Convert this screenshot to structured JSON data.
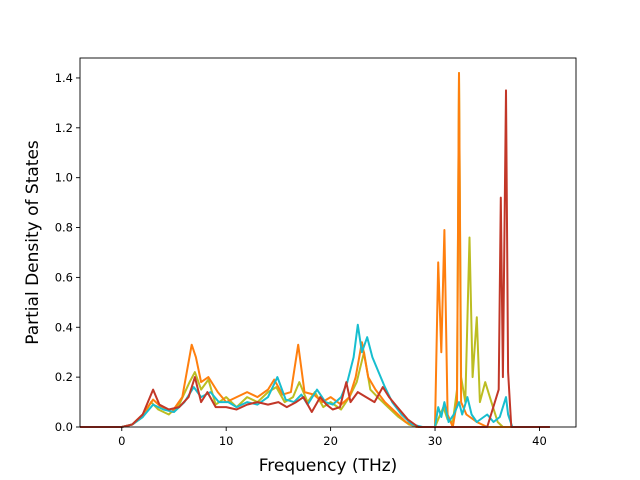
{
  "chart_data": {
    "type": "line",
    "xlabel": "Frequency (THz)",
    "ylabel": "Partial Density of States",
    "xlim": [
      -4.0,
      43.5
    ],
    "ylim": [
      0.0,
      1.48
    ],
    "xticks": [
      0,
      10,
      20,
      30,
      40
    ],
    "xtick_labels": [
      "0",
      "10",
      "20",
      "30",
      "40"
    ],
    "yticks": [
      0.0,
      0.2,
      0.4,
      0.6,
      0.8,
      1.0,
      1.2,
      1.4
    ],
    "ytick_labels": [
      "0.0",
      "0.2",
      "0.4",
      "0.6",
      "0.8",
      "1.0",
      "1.2",
      "1.4"
    ],
    "grid": false,
    "series": [
      {
        "color": "#bcbd22",
        "points": [
          [
            -4,
            0
          ],
          [
            0,
            0
          ],
          [
            1,
            0.01
          ],
          [
            2,
            0.04
          ],
          [
            2.8,
            0.1
          ],
          [
            3.5,
            0.07
          ],
          [
            4.5,
            0.05
          ],
          [
            5.5,
            0.09
          ],
          [
            6.5,
            0.18
          ],
          [
            7,
            0.22
          ],
          [
            7.6,
            0.15
          ],
          [
            8.3,
            0.19
          ],
          [
            9,
            0.09
          ],
          [
            10,
            0.12
          ],
          [
            11,
            0.08
          ],
          [
            12,
            0.12
          ],
          [
            13,
            0.1
          ],
          [
            14,
            0.14
          ],
          [
            14.8,
            0.16
          ],
          [
            15.6,
            0.1
          ],
          [
            16.4,
            0.12
          ],
          [
            17,
            0.18
          ],
          [
            17.8,
            0.1
          ],
          [
            18.5,
            0.14
          ],
          [
            19.3,
            0.08
          ],
          [
            20,
            0.1
          ],
          [
            21,
            0.07
          ],
          [
            21.8,
            0.12
          ],
          [
            22.5,
            0.18
          ],
          [
            23.2,
            0.3
          ],
          [
            23.8,
            0.15
          ],
          [
            24.5,
            0.12
          ],
          [
            25.5,
            0.08
          ],
          [
            26.5,
            0.04
          ],
          [
            27.5,
            0.01
          ],
          [
            28.5,
            0
          ],
          [
            30,
            0
          ],
          [
            30.4,
            0.04
          ],
          [
            30.8,
            0.08
          ],
          [
            31.2,
            0.03
          ],
          [
            31.7,
            0.02
          ],
          [
            32.1,
            0.15
          ],
          [
            32.3,
            1.42
          ],
          [
            32.5,
            0.2
          ],
          [
            32.9,
            0.1
          ],
          [
            33.3,
            0.76
          ],
          [
            33.6,
            0.2
          ],
          [
            34,
            0.44
          ],
          [
            34.3,
            0.1
          ],
          [
            34.8,
            0.18
          ],
          [
            35.4,
            0.1
          ],
          [
            36,
            0.02
          ],
          [
            36.5,
            0
          ],
          [
            38,
            0
          ],
          [
            41,
            0
          ]
        ]
      },
      {
        "color": "#ff7f0e",
        "points": [
          [
            -4,
            0
          ],
          [
            0,
            0
          ],
          [
            1,
            0.01
          ],
          [
            2,
            0.05
          ],
          [
            3,
            0.11
          ],
          [
            3.8,
            0.08
          ],
          [
            4.8,
            0.06
          ],
          [
            5.8,
            0.12
          ],
          [
            6.7,
            0.33
          ],
          [
            7.1,
            0.28
          ],
          [
            7.6,
            0.18
          ],
          [
            8.3,
            0.2
          ],
          [
            9.2,
            0.14
          ],
          [
            10,
            0.1
          ],
          [
            11,
            0.12
          ],
          [
            12,
            0.14
          ],
          [
            13,
            0.12
          ],
          [
            14,
            0.15
          ],
          [
            14.6,
            0.19
          ],
          [
            15.4,
            0.13
          ],
          [
            16.2,
            0.14
          ],
          [
            16.9,
            0.33
          ],
          [
            17.5,
            0.14
          ],
          [
            18.4,
            0.13
          ],
          [
            19.2,
            0.1
          ],
          [
            20,
            0.12
          ],
          [
            21,
            0.09
          ],
          [
            21.8,
            0.12
          ],
          [
            22.4,
            0.2
          ],
          [
            23,
            0.34
          ],
          [
            23.6,
            0.2
          ],
          [
            24.3,
            0.15
          ],
          [
            25.2,
            0.1
          ],
          [
            26.2,
            0.06
          ],
          [
            27.2,
            0.02
          ],
          [
            28.2,
            0
          ],
          [
            30,
            0
          ],
          [
            30.3,
            0.66
          ],
          [
            30.6,
            0.3
          ],
          [
            30.9,
            0.79
          ],
          [
            31.2,
            0.05
          ],
          [
            31.7,
            0
          ],
          [
            32.1,
            0.1
          ],
          [
            32.3,
            1.42
          ],
          [
            32.5,
            0.1
          ],
          [
            33,
            0.05
          ],
          [
            34,
            0.02
          ],
          [
            35,
            0
          ],
          [
            41,
            0
          ]
        ]
      },
      {
        "color": "#17becf",
        "points": [
          [
            -4,
            0
          ],
          [
            0,
            0
          ],
          [
            1,
            0.01
          ],
          [
            2,
            0.04
          ],
          [
            3,
            0.09
          ],
          [
            4,
            0.07
          ],
          [
            5,
            0.06
          ],
          [
            6,
            0.1
          ],
          [
            6.9,
            0.16
          ],
          [
            7.6,
            0.12
          ],
          [
            8.5,
            0.14
          ],
          [
            9.3,
            0.1
          ],
          [
            10.2,
            0.1
          ],
          [
            11,
            0.08
          ],
          [
            12,
            0.1
          ],
          [
            13,
            0.09
          ],
          [
            14,
            0.12
          ],
          [
            14.9,
            0.2
          ],
          [
            15.7,
            0.11
          ],
          [
            16.5,
            0.1
          ],
          [
            17.2,
            0.13
          ],
          [
            17.8,
            0.09
          ],
          [
            18.7,
            0.15
          ],
          [
            19.5,
            0.1
          ],
          [
            20.2,
            0.09
          ],
          [
            21,
            0.12
          ],
          [
            21.6,
            0.18
          ],
          [
            22.2,
            0.28
          ],
          [
            22.6,
            0.41
          ],
          [
            23,
            0.3
          ],
          [
            23.5,
            0.36
          ],
          [
            24,
            0.28
          ],
          [
            24.6,
            0.22
          ],
          [
            25.2,
            0.16
          ],
          [
            25.9,
            0.1
          ],
          [
            26.8,
            0.05
          ],
          [
            27.8,
            0.01
          ],
          [
            28.8,
            0
          ],
          [
            30,
            0
          ],
          [
            30.3,
            0.08
          ],
          [
            30.6,
            0.04
          ],
          [
            30.9,
            0.1
          ],
          [
            31.3,
            0.02
          ],
          [
            31.8,
            0.05
          ],
          [
            32.1,
            0.08
          ],
          [
            32.3,
            0.1
          ],
          [
            32.6,
            0.05
          ],
          [
            33.1,
            0.12
          ],
          [
            33.5,
            0.05
          ],
          [
            34,
            0.02
          ],
          [
            35,
            0.05
          ],
          [
            35.6,
            0.02
          ],
          [
            36.2,
            0.04
          ],
          [
            36.8,
            0.12
          ],
          [
            37,
            0.05
          ],
          [
            37.4,
            0
          ],
          [
            41,
            0
          ]
        ]
      },
      {
        "color": "#c23728",
        "points": [
          [
            -4,
            0
          ],
          [
            0,
            0
          ],
          [
            1,
            0.01
          ],
          [
            2,
            0.05
          ],
          [
            3,
            0.15
          ],
          [
            3.6,
            0.09
          ],
          [
            4.5,
            0.07
          ],
          [
            5.5,
            0.08
          ],
          [
            6.4,
            0.12
          ],
          [
            7,
            0.2
          ],
          [
            7.6,
            0.1
          ],
          [
            8.2,
            0.14
          ],
          [
            9,
            0.08
          ],
          [
            10,
            0.08
          ],
          [
            11,
            0.07
          ],
          [
            12,
            0.09
          ],
          [
            13,
            0.1
          ],
          [
            14,
            0.09
          ],
          [
            15,
            0.1
          ],
          [
            15.8,
            0.08
          ],
          [
            16.7,
            0.1
          ],
          [
            17.4,
            0.12
          ],
          [
            18.2,
            0.06
          ],
          [
            19,
            0.12
          ],
          [
            19.6,
            0.09
          ],
          [
            20.2,
            0.07
          ],
          [
            20.9,
            0.08
          ],
          [
            21.5,
            0.18
          ],
          [
            21.9,
            0.1
          ],
          [
            22.6,
            0.14
          ],
          [
            23.4,
            0.12
          ],
          [
            24.2,
            0.1
          ],
          [
            25,
            0.16
          ],
          [
            25.6,
            0.12
          ],
          [
            26.4,
            0.08
          ],
          [
            27.4,
            0.03
          ],
          [
            28.4,
            0
          ],
          [
            35,
            0
          ],
          [
            36.1,
            0.15
          ],
          [
            36.3,
            0.92
          ],
          [
            36.5,
            0.2
          ],
          [
            36.8,
            1.35
          ],
          [
            37,
            0.22
          ],
          [
            37.3,
            0
          ],
          [
            41,
            0
          ]
        ]
      }
    ]
  }
}
